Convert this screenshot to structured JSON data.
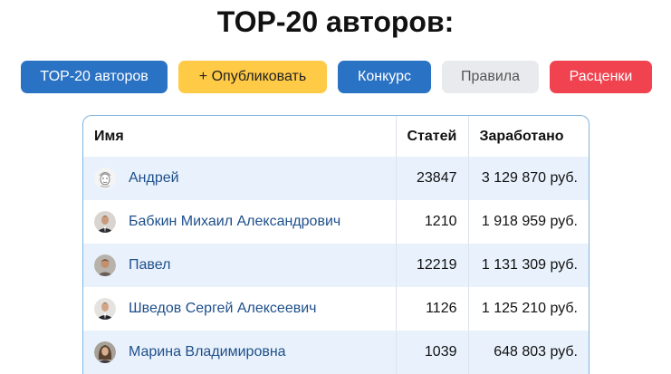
{
  "page_title": "TOP-20 авторов:",
  "buttons": {
    "top": "TOP-20 авторов",
    "publish": "+ Опубликовать",
    "contest": "Конкурс",
    "rules": "Правила",
    "prices": "Расценки"
  },
  "table": {
    "headers": {
      "name": "Имя",
      "articles": "Статей",
      "earned": "Заработано"
    },
    "rows": [
      {
        "name": "Андрей",
        "articles": "23847",
        "earned": "3 129 870 руб.",
        "avatar": "sketch-face-avatar"
      },
      {
        "name": "Бабкин Михаил Александрович",
        "articles": "1210",
        "earned": "1 918 959 руб.",
        "avatar": "man-suit-avatar"
      },
      {
        "name": "Павел",
        "articles": "12219",
        "earned": "1 131 309 руб.",
        "avatar": "man-photo-avatar"
      },
      {
        "name": "Шведов Сергей Алексеевич",
        "articles": "1126",
        "earned": "1 125 210 руб.",
        "avatar": "man-suit-avatar"
      },
      {
        "name": "Марина Владимировна",
        "articles": "1039",
        "earned": "648 803 руб.",
        "avatar": "woman-photo-avatar"
      }
    ]
  },
  "colors": {
    "primary": "#2a72c4",
    "publish": "#ffca45",
    "rules": "#e8eaed",
    "prices": "#f0434f",
    "link": "#1e4f8a",
    "row_alt": "#e9f2fc"
  }
}
